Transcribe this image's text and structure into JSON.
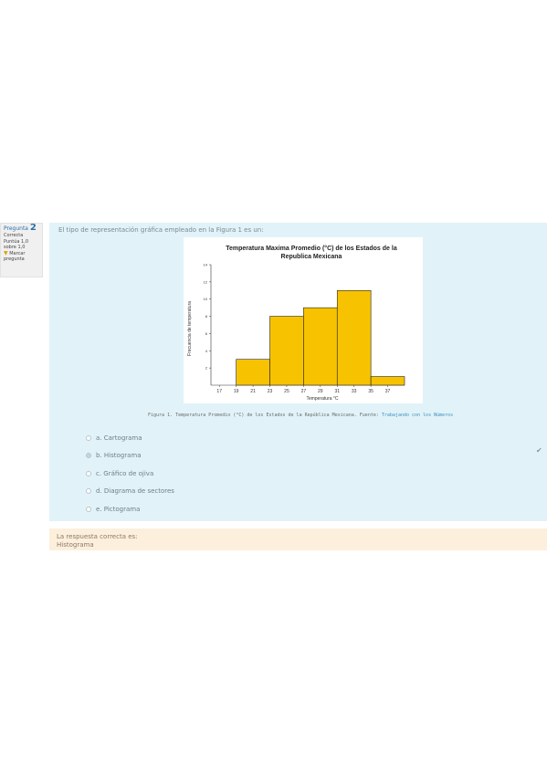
{
  "info": {
    "question_label": "Pregunta",
    "question_number": "2",
    "status": "Correcta",
    "points": "Puntúa 1,0 sobre 1,0",
    "flag_label": "Marcar pregunta"
  },
  "question": {
    "text": "El tipo de representación gráfica empleado en la Figura 1 es un:"
  },
  "figure": {
    "caption_prefix": "Figura 1. Temperatura Promedio (°C) de los Estados de la República Mexicana. Fuente:",
    "caption_link": "Trabajando con los Números"
  },
  "answers": [
    {
      "label": "a. Cartograma"
    },
    {
      "label": "b. Histograma"
    },
    {
      "label": "c. Gráfico de ojiva"
    },
    {
      "label": "d. Diagrama de sectores"
    },
    {
      "label": "e. Pictograma"
    }
  ],
  "feedback": {
    "intro": "La respuesta correcta es:",
    "answer": "Histograma"
  },
  "chart_data": {
    "type": "bar",
    "title": "Temperatura Maxima Promedio (°C) de los Estados de la",
    "title2": "Republica Mexicana",
    "xlabel": "Temperatura °C",
    "ylabel": "Frecuencia de temperatura",
    "ylim": [
      0,
      14
    ],
    "yticks": [
      "2",
      "4",
      "6",
      "8",
      "10",
      "12",
      "14"
    ],
    "xticks": [
      "17",
      "19",
      "21",
      "23",
      "25",
      "27",
      "29",
      "31",
      "33",
      "35",
      "37"
    ],
    "bins": [
      {
        "from": 19,
        "to": 23,
        "value": 3
      },
      {
        "from": 23,
        "to": 27,
        "value": 8
      },
      {
        "from": 27,
        "to": 31,
        "value": 9
      },
      {
        "from": 31,
        "to": 35,
        "value": 11
      },
      {
        "from": 35,
        "to": 39,
        "value": 1
      }
    ],
    "bar_color": "#f7c300"
  }
}
